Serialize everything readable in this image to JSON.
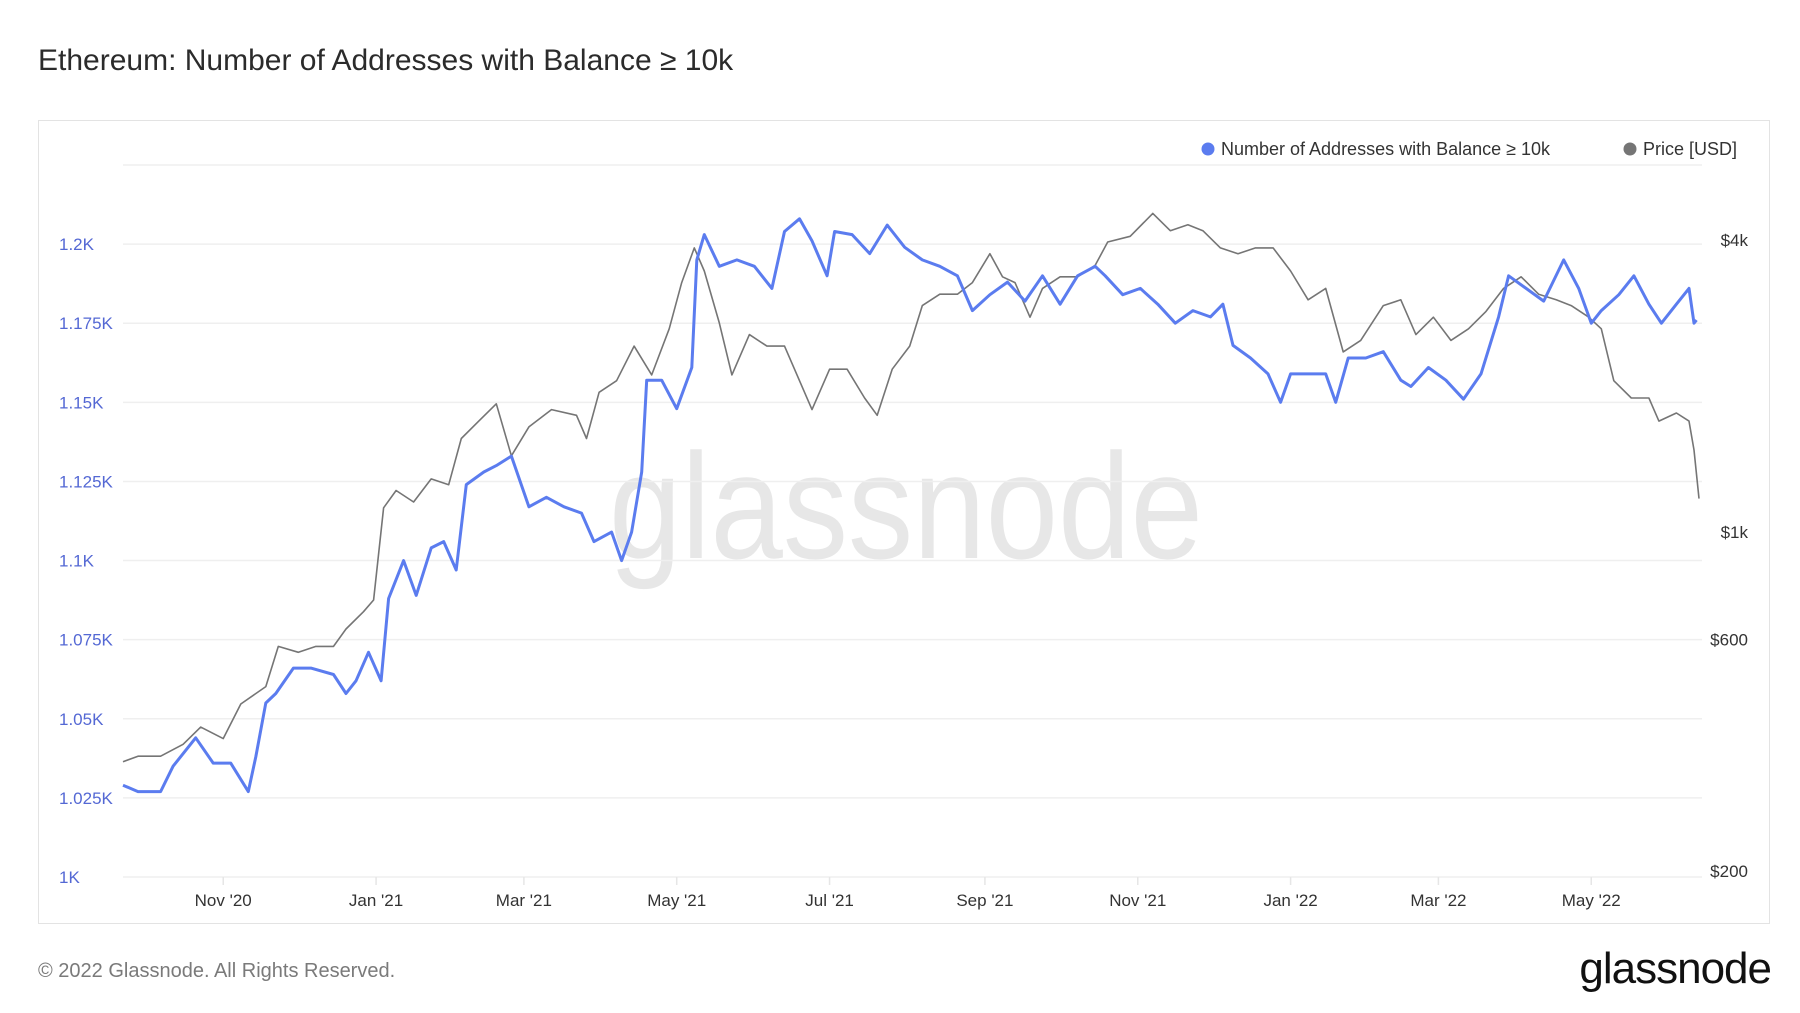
{
  "title": "Ethereum: Number of Addresses with Balance ≥ 10k",
  "footer": "© 2022 Glassnode. All Rights Reserved.",
  "logo": "glassnode",
  "watermark": "glassnode",
  "colors": {
    "addresses": "#5b7cef",
    "price": "#757575",
    "left_ticks": "#5468d4",
    "right_ticks": "#333333"
  },
  "chart_data": {
    "type": "line",
    "title": "Ethereum: Number of Addresses with Balance ≥ 10k",
    "x_start_date": "2020-09-22",
    "x_unit": "days since 2020-09-22",
    "x_range": [
      0,
      629
    ],
    "x_ticks": [
      {
        "label": "Nov '20",
        "day": 40
      },
      {
        "label": "Jan '21",
        "day": 101
      },
      {
        "label": "Mar '21",
        "day": 160
      },
      {
        "label": "May '21",
        "day": 221
      },
      {
        "label": "Jul '21",
        "day": 282
      },
      {
        "label": "Sep '21",
        "day": 344
      },
      {
        "label": "Nov '21",
        "day": 405
      },
      {
        "label": "Jan '22",
        "day": 466
      },
      {
        "label": "Mar '22",
        "day": 525
      },
      {
        "label": "May '22",
        "day": 586
      }
    ],
    "y_left": {
      "range": [
        1000,
        1225
      ],
      "scale": "linear",
      "ticks": [
        {
          "label": "1K",
          "value": 1000
        },
        {
          "label": "1.025K",
          "value": 1025
        },
        {
          "label": "1.05K",
          "value": 1050
        },
        {
          "label": "1.075K",
          "value": 1075
        },
        {
          "label": "1.1K",
          "value": 1100
        },
        {
          "label": "1.125K",
          "value": 1125
        },
        {
          "label": "1.15K",
          "value": 1150
        },
        {
          "label": "1.175K",
          "value": 1175
        },
        {
          "label": "1.2K",
          "value": 1200
        }
      ]
    },
    "y_right": {
      "scale": "log",
      "unit": "USD",
      "ticks": [
        {
          "label": "$200",
          "value": 200
        },
        {
          "label": "$600",
          "value": 600
        },
        {
          "label": "$1k",
          "value": 1000
        },
        {
          "label": "$4k",
          "value": 4000
        }
      ]
    },
    "grid": true,
    "legend_position": "top-right",
    "series": [
      {
        "name": "Number of Addresses with Balance ≥ 10k",
        "axis": "left",
        "points": [
          [
            0,
            1029
          ],
          [
            6,
            1027
          ],
          [
            15,
            1027
          ],
          [
            20,
            1035
          ],
          [
            29,
            1044
          ],
          [
            36,
            1036
          ],
          [
            43,
            1036
          ],
          [
            50,
            1027
          ],
          [
            53,
            1038
          ],
          [
            57,
            1055
          ],
          [
            61,
            1058
          ],
          [
            68,
            1066
          ],
          [
            75,
            1066
          ],
          [
            84,
            1064
          ],
          [
            89,
            1058
          ],
          [
            93,
            1062
          ],
          [
            98,
            1071
          ],
          [
            103,
            1062
          ],
          [
            106,
            1088
          ],
          [
            112,
            1100
          ],
          [
            117,
            1089
          ],
          [
            123,
            1104
          ],
          [
            128,
            1106
          ],
          [
            133,
            1097
          ],
          [
            137,
            1124
          ],
          [
            144,
            1128
          ],
          [
            149,
            1130
          ],
          [
            155,
            1133
          ],
          [
            162,
            1117
          ],
          [
            169,
            1120
          ],
          [
            176,
            1117
          ],
          [
            183,
            1115
          ],
          [
            188,
            1106
          ],
          [
            195,
            1109
          ],
          [
            199,
            1100
          ],
          [
            203,
            1109
          ],
          [
            207,
            1128
          ],
          [
            209,
            1157
          ],
          [
            215,
            1157
          ],
          [
            221,
            1148
          ],
          [
            227,
            1161
          ],
          [
            229,
            1195
          ],
          [
            232,
            1203
          ],
          [
            238,
            1193
          ],
          [
            245,
            1195
          ],
          [
            252,
            1193
          ],
          [
            259,
            1186
          ],
          [
            264,
            1204
          ],
          [
            270,
            1208
          ],
          [
            275,
            1201
          ],
          [
            281,
            1190
          ],
          [
            284,
            1204
          ],
          [
            291,
            1203
          ],
          [
            298,
            1197
          ],
          [
            305,
            1206
          ],
          [
            312,
            1199
          ],
          [
            319,
            1195
          ],
          [
            326,
            1193
          ],
          [
            333,
            1190
          ],
          [
            339,
            1179
          ],
          [
            346,
            1184
          ],
          [
            353,
            1188
          ],
          [
            360,
            1182
          ],
          [
            367,
            1190
          ],
          [
            374,
            1181
          ],
          [
            381,
            1190
          ],
          [
            388,
            1193
          ],
          [
            392,
            1190
          ],
          [
            399,
            1184
          ],
          [
            406,
            1186
          ],
          [
            413,
            1181
          ],
          [
            420,
            1175
          ],
          [
            427,
            1179
          ],
          [
            434,
            1177
          ],
          [
            439,
            1181
          ],
          [
            443,
            1168
          ],
          [
            450,
            1164
          ],
          [
            457,
            1159
          ],
          [
            462,
            1150
          ],
          [
            466,
            1159
          ],
          [
            473,
            1159
          ],
          [
            480,
            1159
          ],
          [
            484,
            1150
          ],
          [
            489,
            1164
          ],
          [
            496,
            1164
          ],
          [
            503,
            1166
          ],
          [
            510,
            1157
          ],
          [
            514,
            1155
          ],
          [
            521,
            1161
          ],
          [
            528,
            1157
          ],
          [
            535,
            1151
          ],
          [
            542,
            1159
          ],
          [
            549,
            1177
          ],
          [
            553,
            1190
          ],
          [
            560,
            1186
          ],
          [
            567,
            1182
          ],
          [
            575,
            1195
          ],
          [
            581,
            1186
          ],
          [
            586,
            1175
          ],
          [
            590,
            1179
          ],
          [
            597,
            1184
          ],
          [
            603,
            1190
          ],
          [
            609,
            1181
          ],
          [
            614,
            1175
          ],
          [
            620,
            1181
          ],
          [
            625,
            1186
          ],
          [
            627,
            1175
          ],
          [
            628,
            1176
          ]
        ]
      },
      {
        "name": "Price [USD]",
        "axis": "right",
        "points": [
          [
            0,
            336
          ],
          [
            6,
            345
          ],
          [
            15,
            345
          ],
          [
            24,
            365
          ],
          [
            31,
            396
          ],
          [
            40,
            375
          ],
          [
            47,
            442
          ],
          [
            57,
            480
          ],
          [
            62,
            581
          ],
          [
            70,
            565
          ],
          [
            77,
            581
          ],
          [
            84,
            581
          ],
          [
            89,
            631
          ],
          [
            96,
            685
          ],
          [
            100,
            724
          ],
          [
            104,
            1122
          ],
          [
            109,
            1218
          ],
          [
            116,
            1153
          ],
          [
            123,
            1287
          ],
          [
            130,
            1252
          ],
          [
            135,
            1559
          ],
          [
            142,
            1693
          ],
          [
            149,
            1838
          ],
          [
            155,
            1436
          ],
          [
            162,
            1647
          ],
          [
            171,
            1788
          ],
          [
            181,
            1740
          ],
          [
            185,
            1559
          ],
          [
            190,
            1941
          ],
          [
            197,
            2051
          ],
          [
            204,
            2417
          ],
          [
            211,
            2108
          ],
          [
            218,
            2624
          ],
          [
            223,
            3268
          ],
          [
            228,
            3852
          ],
          [
            232,
            3452
          ],
          [
            238,
            2698
          ],
          [
            243,
            2108
          ],
          [
            250,
            2553
          ],
          [
            257,
            2417
          ],
          [
            264,
            2417
          ],
          [
            270,
            2051
          ],
          [
            275,
            1788
          ],
          [
            282,
            2166
          ],
          [
            289,
            2166
          ],
          [
            296,
            1889
          ],
          [
            301,
            1740
          ],
          [
            307,
            2166
          ],
          [
            314,
            2417
          ],
          [
            319,
            2929
          ],
          [
            326,
            3093
          ],
          [
            333,
            3093
          ],
          [
            339,
            3268
          ],
          [
            346,
            3749
          ],
          [
            351,
            3359
          ],
          [
            356,
            3268
          ],
          [
            362,
            2773
          ],
          [
            367,
            3179
          ],
          [
            374,
            3359
          ],
          [
            381,
            3359
          ],
          [
            388,
            3548
          ],
          [
            393,
            3962
          ],
          [
            402,
            4071
          ],
          [
            411,
            4539
          ],
          [
            418,
            4181
          ],
          [
            425,
            4299
          ],
          [
            431,
            4181
          ],
          [
            438,
            3852
          ],
          [
            445,
            3749
          ],
          [
            452,
            3852
          ],
          [
            459,
            3852
          ],
          [
            466,
            3452
          ],
          [
            473,
            3011
          ],
          [
            480,
            3179
          ],
          [
            487,
            2352
          ],
          [
            494,
            2484
          ],
          [
            503,
            2929
          ],
          [
            510,
            3011
          ],
          [
            516,
            2553
          ],
          [
            523,
            2773
          ],
          [
            530,
            2484
          ],
          [
            537,
            2624
          ],
          [
            544,
            2850
          ],
          [
            551,
            3179
          ],
          [
            558,
            3359
          ],
          [
            565,
            3093
          ],
          [
            572,
            3011
          ],
          [
            578,
            2929
          ],
          [
            585,
            2773
          ],
          [
            590,
            2624
          ],
          [
            595,
            2051
          ],
          [
            602,
            1889
          ],
          [
            609,
            1889
          ],
          [
            613,
            1693
          ],
          [
            620,
            1759
          ],
          [
            625,
            1693
          ],
          [
            627,
            1476
          ],
          [
            629,
            1172
          ]
        ]
      }
    ]
  }
}
